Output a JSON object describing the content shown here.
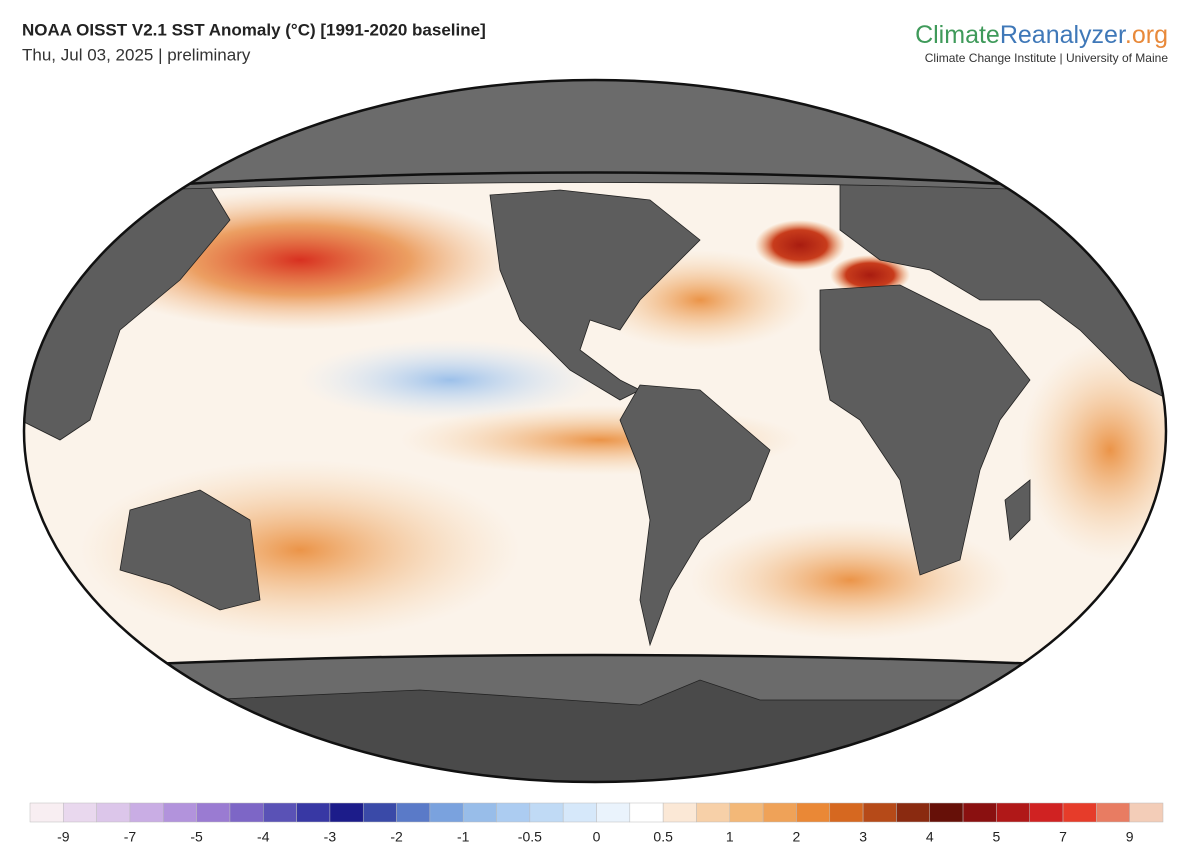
{
  "header": {
    "title": "NOAA OISST V2.1 SST Anomaly (°C) [1991-2020 baseline]",
    "subtitle": "Thu, Jul 03, 2025 | preliminary",
    "logo": [
      {
        "text": "Climate",
        "color": "#3f9a5a"
      },
      {
        "text": "Reanalyzer",
        "color": "#3f78b8"
      },
      {
        "text": ".org",
        "color": "#e8893a"
      }
    ],
    "institute": "Climate Change Institute | University of Maine"
  },
  "colorbar": {
    "ticks": [
      -9,
      -7,
      -5,
      -4,
      -3,
      -2,
      -1,
      -0.5,
      0,
      0.5,
      1,
      2,
      3,
      4,
      5,
      7,
      9
    ],
    "colors": [
      "#f8eef2",
      "#e9d8ee",
      "#dcc6ea",
      "#c9ade4",
      "#b293dc",
      "#9a7bd2",
      "#7d66c6",
      "#5a52b6",
      "#3838a4",
      "#1c1c8a",
      "#3a4aa8",
      "#5a7ac8",
      "#7aa2de",
      "#98bde9",
      "#acccf1",
      "#c0daf5",
      "#d6e8fa",
      "#eaf3fc",
      "#ffffff",
      "#fbe8d6",
      "#f7d0a8",
      "#f3b878",
      "#efa258",
      "#ea8836",
      "#d66820",
      "#b64a18",
      "#8a2a10",
      "#661008",
      "#8a1010",
      "#b01818",
      "#d02222",
      "#e63c2a",
      "#e87c62",
      "#f3cdb8"
    ]
  }
}
